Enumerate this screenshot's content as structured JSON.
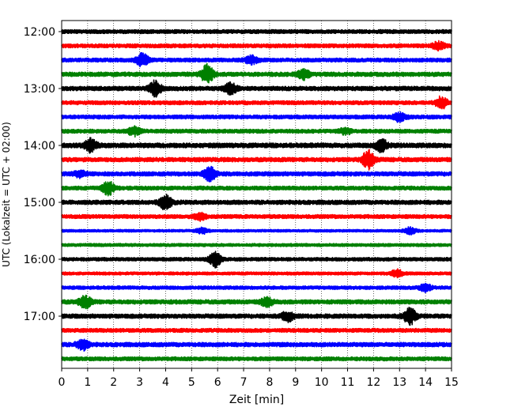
{
  "chart_data": {
    "type": "line",
    "title": "",
    "xlabel": "Zeit  [min]",
    "ylabel": "UTC (Lokalzeit = UTC + 02:00)",
    "xlim": [
      0,
      15
    ],
    "x_ticks": [
      0,
      1,
      2,
      3,
      4,
      5,
      6,
      7,
      8,
      9,
      10,
      11,
      12,
      13,
      14,
      15
    ],
    "x_tick_labels": [
      "0",
      "1",
      "2",
      "3",
      "4",
      "5",
      "6",
      "7",
      "8",
      "9",
      "10",
      "11",
      "12",
      "13",
      "14",
      "15"
    ],
    "y_tick_labels": [
      "12:00",
      "13:00",
      "14:00",
      "15:00",
      "16:00",
      "17:00"
    ],
    "trace_minutes": 15,
    "grid": "vertical dotted at each minute",
    "colors": [
      "#000000",
      "#ff0000",
      "#0000ff",
      "#008000"
    ],
    "traces": [
      {
        "start": "12:00",
        "color": "#000000",
        "amplitude": 0.45,
        "events": []
      },
      {
        "start": "12:15",
        "color": "#ff0000",
        "amplitude": 0.45,
        "events": [
          {
            "t": 14.5,
            "amp": 0.8
          }
        ]
      },
      {
        "start": "12:30",
        "color": "#0000ff",
        "amplitude": 0.45,
        "events": [
          {
            "t": 3.1,
            "amp": 1.3
          },
          {
            "t": 7.3,
            "amp": 0.8
          }
        ]
      },
      {
        "start": "12:45",
        "color": "#008000",
        "amplitude": 0.5,
        "events": [
          {
            "t": 5.6,
            "amp": 2.0
          },
          {
            "t": 9.3,
            "amp": 1.0
          }
        ]
      },
      {
        "start": "13:00",
        "color": "#000000",
        "amplitude": 0.5,
        "events": [
          {
            "t": 3.6,
            "amp": 1.6
          },
          {
            "t": 6.5,
            "amp": 1.1
          }
        ]
      },
      {
        "start": "13:15",
        "color": "#ff0000",
        "amplitude": 0.45,
        "events": [
          {
            "t": 14.6,
            "amp": 1.3
          }
        ]
      },
      {
        "start": "13:30",
        "color": "#0000ff",
        "amplitude": 0.45,
        "events": [
          {
            "t": 13.0,
            "amp": 0.9
          }
        ]
      },
      {
        "start": "13:45",
        "color": "#008000",
        "amplitude": 0.45,
        "events": [
          {
            "t": 2.8,
            "amp": 0.9
          },
          {
            "t": 10.9,
            "amp": 0.6
          }
        ]
      },
      {
        "start": "14:00",
        "color": "#000000",
        "amplitude": 0.55,
        "events": [
          {
            "t": 1.1,
            "amp": 1.3
          },
          {
            "t": 12.3,
            "amp": 1.3
          }
        ]
      },
      {
        "start": "14:15",
        "color": "#ff0000",
        "amplitude": 0.5,
        "events": [
          {
            "t": 11.8,
            "amp": 1.9
          }
        ]
      },
      {
        "start": "14:30",
        "color": "#0000ff",
        "amplitude": 0.5,
        "events": [
          {
            "t": 5.7,
            "amp": 1.5
          },
          {
            "t": 0.7,
            "amp": 0.6
          }
        ]
      },
      {
        "start": "14:45",
        "color": "#008000",
        "amplitude": 0.45,
        "events": [
          {
            "t": 1.8,
            "amp": 1.4
          }
        ]
      },
      {
        "start": "15:00",
        "color": "#000000",
        "amplitude": 0.5,
        "events": [
          {
            "t": 4.0,
            "amp": 1.5
          }
        ]
      },
      {
        "start": "15:15",
        "color": "#ff0000",
        "amplitude": 0.45,
        "events": [
          {
            "t": 5.3,
            "amp": 0.7
          }
        ]
      },
      {
        "start": "15:30",
        "color": "#0000ff",
        "amplitude": 0.3,
        "events": [
          {
            "t": 5.4,
            "amp": 0.6
          },
          {
            "t": 13.4,
            "amp": 0.7
          }
        ]
      },
      {
        "start": "15:45",
        "color": "#008000",
        "amplitude": 0.35,
        "events": []
      },
      {
        "start": "16:00",
        "color": "#000000",
        "amplitude": 0.4,
        "events": [
          {
            "t": 5.9,
            "amp": 1.6
          }
        ]
      },
      {
        "start": "16:15",
        "color": "#ff0000",
        "amplitude": 0.35,
        "events": [
          {
            "t": 12.9,
            "amp": 0.8
          }
        ]
      },
      {
        "start": "16:30",
        "color": "#0000ff",
        "amplitude": 0.4,
        "events": [
          {
            "t": 14.0,
            "amp": 0.7
          }
        ]
      },
      {
        "start": "16:45",
        "color": "#008000",
        "amplitude": 0.5,
        "events": [
          {
            "t": 0.9,
            "amp": 1.3
          },
          {
            "t": 7.9,
            "amp": 0.9
          }
        ]
      },
      {
        "start": "17:00",
        "color": "#000000",
        "amplitude": 0.5,
        "events": [
          {
            "t": 8.7,
            "amp": 1.0
          },
          {
            "t": 13.4,
            "amp": 1.7
          }
        ]
      },
      {
        "start": "17:15",
        "color": "#ff0000",
        "amplitude": 0.45,
        "events": []
      },
      {
        "start": "17:30",
        "color": "#0000ff",
        "amplitude": 0.5,
        "events": [
          {
            "t": 0.8,
            "amp": 1.1
          }
        ]
      },
      {
        "start": "17:45",
        "color": "#008000",
        "amplitude": 0.45,
        "events": []
      }
    ]
  }
}
